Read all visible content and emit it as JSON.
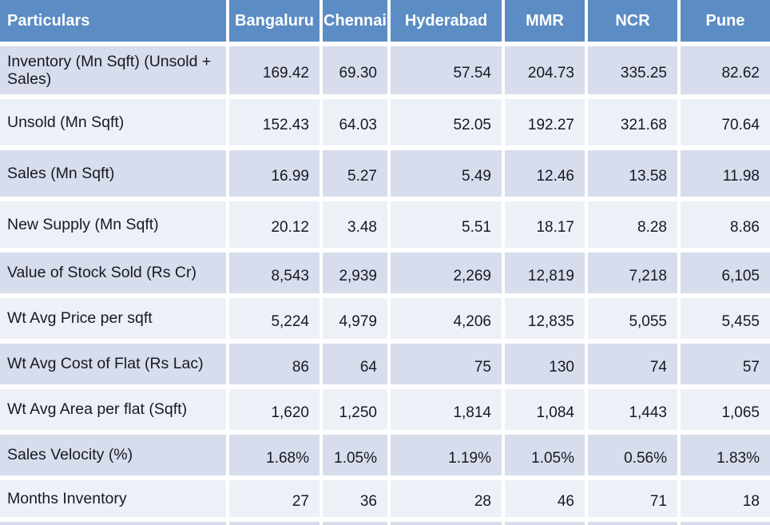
{
  "ui": {
    "corner_header": "Particulars",
    "colors": {
      "header_bg": "#5b8cc4",
      "header_text": "#ffffff",
      "band_dark": "#d7ddec",
      "band_light": "#ecf1f8",
      "cell_text": "#171922",
      "gap": "#ffffff"
    }
  },
  "chart_data": {
    "type": "table",
    "title": "",
    "columns": [
      "Bangaluru",
      "Chennai",
      "Hyderabad",
      "MMR",
      "NCR",
      "Pune"
    ],
    "rows": [
      {
        "label": "Inventory (Mn Sqft) (Unsold + Sales)",
        "values": [
          "169.42",
          "69.30",
          "57.54",
          "204.73",
          "335.25",
          "82.62"
        ]
      },
      {
        "label": "Unsold (Mn Sqft)",
        "values": [
          "152.43",
          "64.03",
          "52.05",
          "192.27",
          "321.68",
          "70.64"
        ]
      },
      {
        "label": "Sales (Mn Sqft)",
        "values": [
          "16.99",
          "5.27",
          "5.49",
          "12.46",
          "13.58",
          "11.98"
        ]
      },
      {
        "label": "New Supply (Mn Sqft)",
        "values": [
          "20.12",
          "3.48",
          "5.51",
          "18.17",
          "8.28",
          "8.86"
        ]
      },
      {
        "label": "Value of Stock Sold (Rs Cr)",
        "values": [
          "8,543",
          "2,939",
          "2,269",
          "12,819",
          "7,218",
          "6,105"
        ]
      },
      {
        "label": "Wt Avg Price per sqft",
        "values": [
          "5,224",
          "4,979",
          "4,206",
          "12,835",
          "5,055",
          "5,455"
        ]
      },
      {
        "label": "Wt Avg Cost of Flat (Rs Lac)",
        "values": [
          "86",
          "64",
          "75",
          "130",
          "74",
          "57"
        ]
      },
      {
        "label": "Wt Avg  Area per flat (Sqft)",
        "values": [
          "1,620",
          "1,250",
          "1,814",
          "1,084",
          "1,443",
          "1,065"
        ]
      },
      {
        "label": "Sales Velocity (%)",
        "values": [
          "1.68%",
          "1.05%",
          "1.19%",
          "1.05%",
          "0.56%",
          "1.83%"
        ]
      },
      {
        "label": "Months Inventory",
        "values": [
          "27",
          "36",
          "28",
          "46",
          "71",
          "18"
        ]
      }
    ]
  }
}
